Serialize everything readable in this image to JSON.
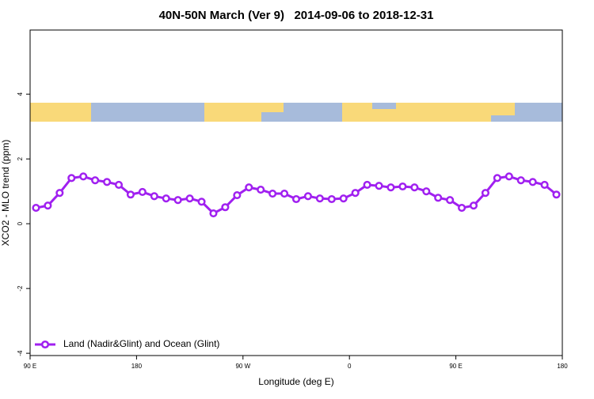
{
  "chart_data": {
    "type": "line",
    "title": "40N-50N March (Ver 9)   2014-09-06 to 2018-12-31",
    "x_label": "Longitude (deg E)",
    "y_label": "XCO2 - MLO trend (ppm)",
    "x": [
      95,
      105,
      115,
      125,
      135,
      145,
      155,
      165,
      175,
      185,
      195,
      205,
      215,
      225,
      235,
      245,
      255,
      265,
      275,
      285,
      295,
      305,
      315,
      325,
      335,
      345,
      355,
      365,
      375,
      385,
      395,
      405,
      415,
      425,
      435,
      445,
      455,
      465,
      475,
      485,
      495,
      505,
      515,
      525,
      535
    ],
    "series": [
      {
        "name": "Land (Nadir&Glint) and Ocean (Glint)",
        "color": "#a020f0",
        "values": [
          0.49,
          0.56,
          0.95,
          1.41,
          1.46,
          1.34,
          1.29,
          1.2,
          0.9,
          0.98,
          0.85,
          0.78,
          0.73,
          0.78,
          0.68,
          0.32,
          0.51,
          0.88,
          1.12,
          1.05,
          0.93,
          0.93,
          0.76,
          0.85,
          0.78,
          0.76,
          0.78,
          0.95,
          1.2,
          1.17,
          1.12,
          1.15,
          1.12,
          1.0,
          0.8,
          0.73,
          0.49,
          0.56,
          0.95,
          1.41,
          1.46,
          1.34,
          1.29,
          1.2,
          0.9
        ]
      }
    ],
    "xlim": [
      90,
      540
    ],
    "xticks": [
      {
        "value": 90,
        "label": "90 E"
      },
      180,
      {
        "value": 270,
        "label": "90 W"
      },
      {
        "value": 360,
        "label": "0"
      },
      {
        "value": 450,
        "label": "90 E"
      },
      {
        "value": 540,
        "label": "180"
      }
    ],
    "ylim": [
      -4.07,
      5.98
    ],
    "yticks": [
      -4,
      -2,
      0,
      2,
      4
    ],
    "legend": "bottom-left"
  }
}
